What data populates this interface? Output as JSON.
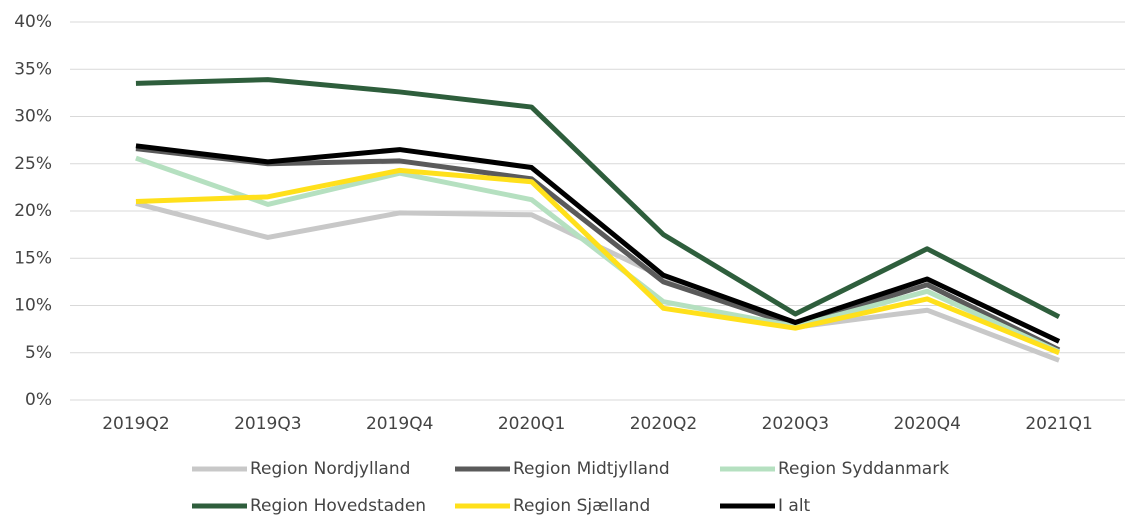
{
  "chart_data": {
    "type": "line",
    "categories": [
      "2019Q2",
      "2019Q3",
      "2019Q4",
      "2020Q1",
      "2020Q2",
      "2020Q3",
      "2020Q4",
      "2021Q1"
    ],
    "series": [
      {
        "name": "Region Nordjylland",
        "color": "#c8c8c8",
        "values": [
          20.8,
          17.2,
          19.8,
          19.6,
          13.0,
          7.7,
          9.5,
          4.2
        ]
      },
      {
        "name": "Region Midtjylland",
        "color": "#5a5a5a",
        "values": [
          26.6,
          25.0,
          25.3,
          23.4,
          12.5,
          7.9,
          12.2,
          5.3
        ]
      },
      {
        "name": "Region Syddanmark",
        "color": "#b5e0c0",
        "values": [
          25.6,
          20.7,
          24.0,
          21.2,
          10.4,
          7.8,
          11.5,
          5.1
        ]
      },
      {
        "name": "Region Hovedstaden",
        "color": "#2e5e3c",
        "values": [
          33.5,
          33.9,
          32.6,
          31.0,
          17.5,
          9.1,
          16.0,
          8.8
        ]
      },
      {
        "name": "Region Sjælland",
        "color": "#ffe01b",
        "values": [
          21.0,
          21.5,
          24.3,
          23.1,
          9.7,
          7.6,
          10.7,
          5.0
        ]
      },
      {
        "name": "I alt",
        "color": "#000000",
        "values": [
          26.9,
          25.2,
          26.5,
          24.6,
          13.2,
          8.2,
          12.8,
          6.2
        ]
      }
    ],
    "ylim": [
      0,
      40
    ],
    "yticks": [
      {
        "value": 0,
        "label": "0%"
      },
      {
        "value": 5,
        "label": "5%"
      },
      {
        "value": 10,
        "label": "10%"
      },
      {
        "value": 15,
        "label": "15%"
      },
      {
        "value": 20,
        "label": "20%"
      },
      {
        "value": 25,
        "label": "25%"
      },
      {
        "value": 30,
        "label": "30%"
      },
      {
        "value": 35,
        "label": "35%"
      },
      {
        "value": 40,
        "label": "40%"
      }
    ],
    "grid": true
  }
}
